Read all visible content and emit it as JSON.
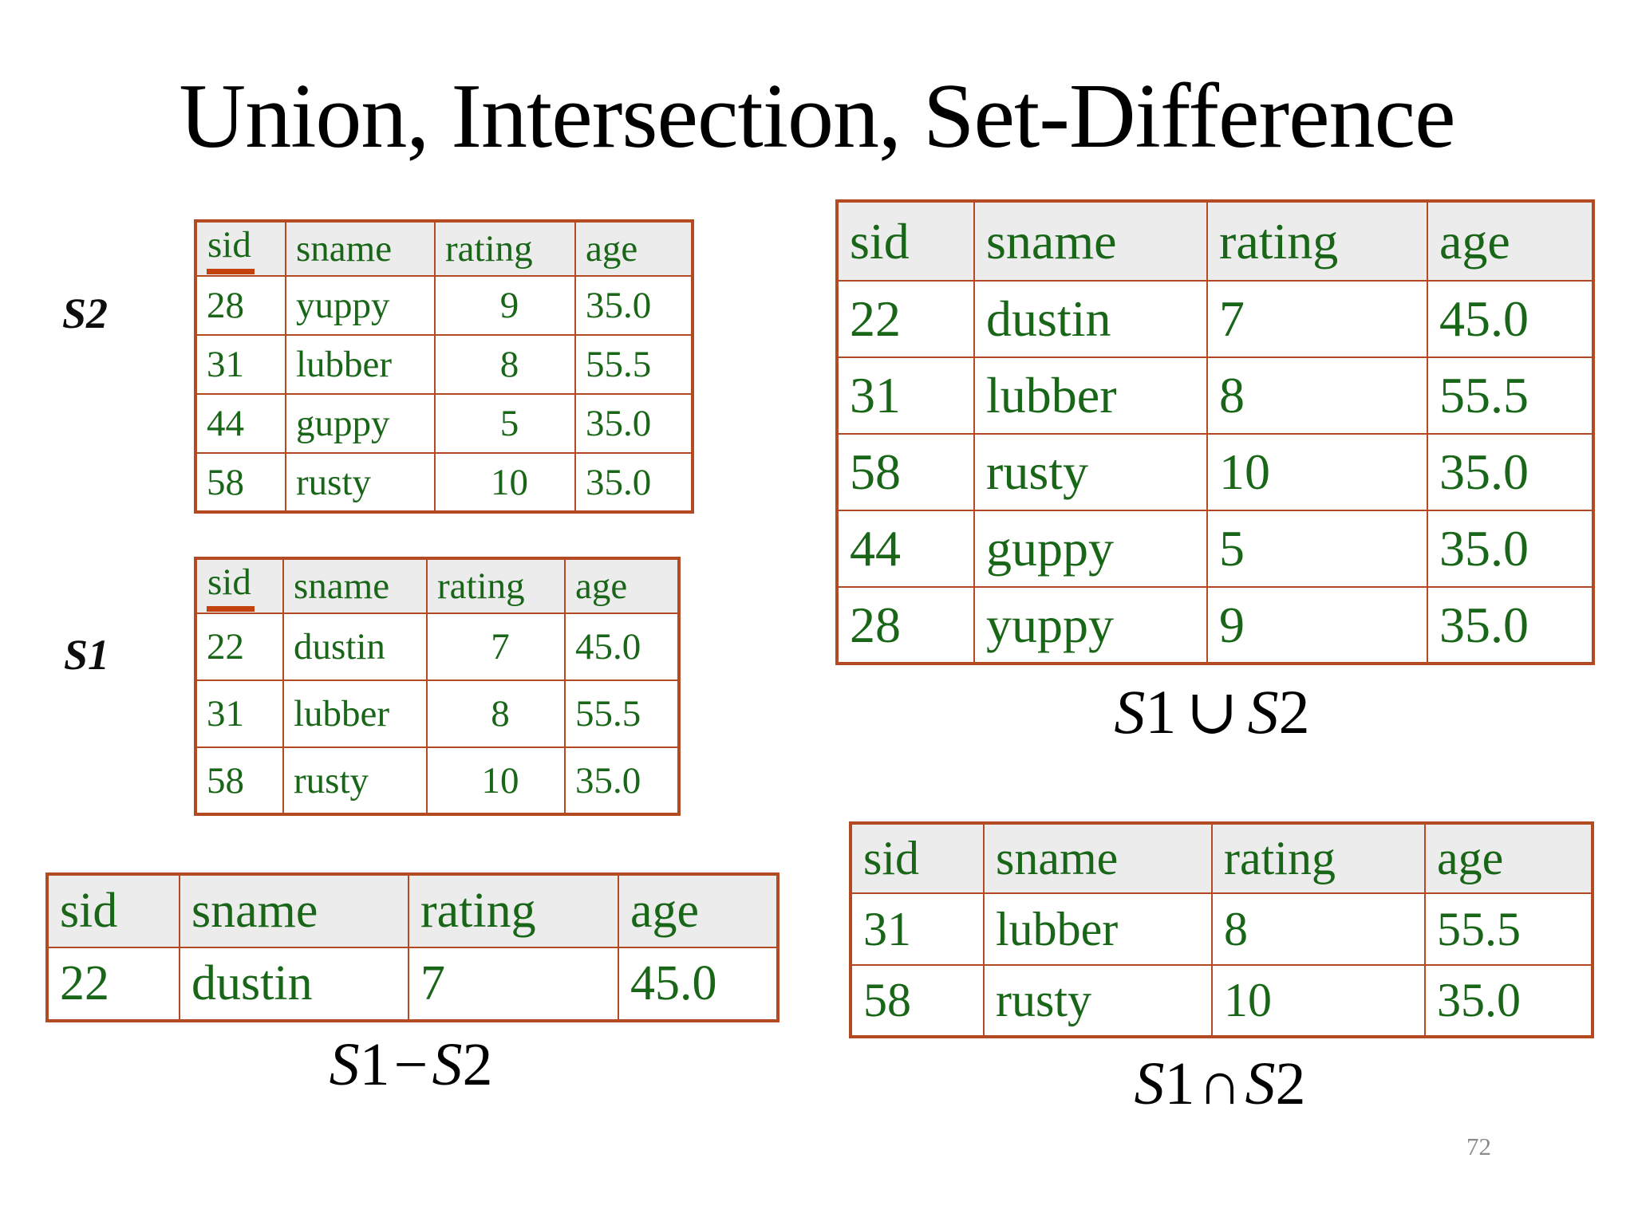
{
  "title": "Union, Intersection, Set-Difference",
  "page_number": "72",
  "colors": {
    "table_text_green": "#196619",
    "table_border": "#b34a22",
    "header_background": "#ececec",
    "key_underline": "#c2410c"
  },
  "relations": {
    "s2": {
      "label": "S2",
      "columns": [
        "sid",
        "sname",
        "rating",
        "age"
      ],
      "key_underline": true,
      "align": [
        "left",
        "left",
        "center",
        "left"
      ],
      "rows": [
        [
          "28",
          "yuppy",
          "9",
          "35.0"
        ],
        [
          "31",
          "lubber",
          "8",
          "55.5"
        ],
        [
          "44",
          "guppy",
          "5",
          "35.0"
        ],
        [
          "58",
          "rusty",
          "10",
          "35.0"
        ]
      ]
    },
    "s1": {
      "label": "S1",
      "columns": [
        "sid",
        "sname",
        "rating",
        "age"
      ],
      "key_underline": true,
      "align": [
        "left",
        "left",
        "center",
        "left"
      ],
      "rows": [
        [
          "22",
          "dustin",
          "7",
          "45.0"
        ],
        [
          "31",
          "lubber",
          "8",
          "55.5"
        ],
        [
          "58",
          "rusty",
          "10",
          "35.0"
        ]
      ]
    },
    "union": {
      "caption": "S1∪S2",
      "columns": [
        "sid",
        "sname",
        "rating",
        "age"
      ],
      "rows": [
        [
          "22",
          "dustin",
          "7",
          "45.0"
        ],
        [
          "31",
          "lubber",
          "8",
          "55.5"
        ],
        [
          "58",
          "rusty",
          "10",
          "35.0"
        ],
        [
          "44",
          "guppy",
          "5",
          "35.0"
        ],
        [
          "28",
          "yuppy",
          "9",
          "35.0"
        ]
      ]
    },
    "difference": {
      "caption": "S1−S2",
      "columns": [
        "sid",
        "sname",
        "rating",
        "age"
      ],
      "rows": [
        [
          "22",
          "dustin",
          "7",
          "45.0"
        ]
      ]
    },
    "intersection": {
      "caption": "S1∩S2",
      "columns": [
        "sid",
        "sname",
        "rating",
        "age"
      ],
      "rows": [
        [
          "31",
          "lubber",
          "8",
          "55.5"
        ],
        [
          "58",
          "rusty",
          "10",
          "35.0"
        ]
      ]
    }
  }
}
